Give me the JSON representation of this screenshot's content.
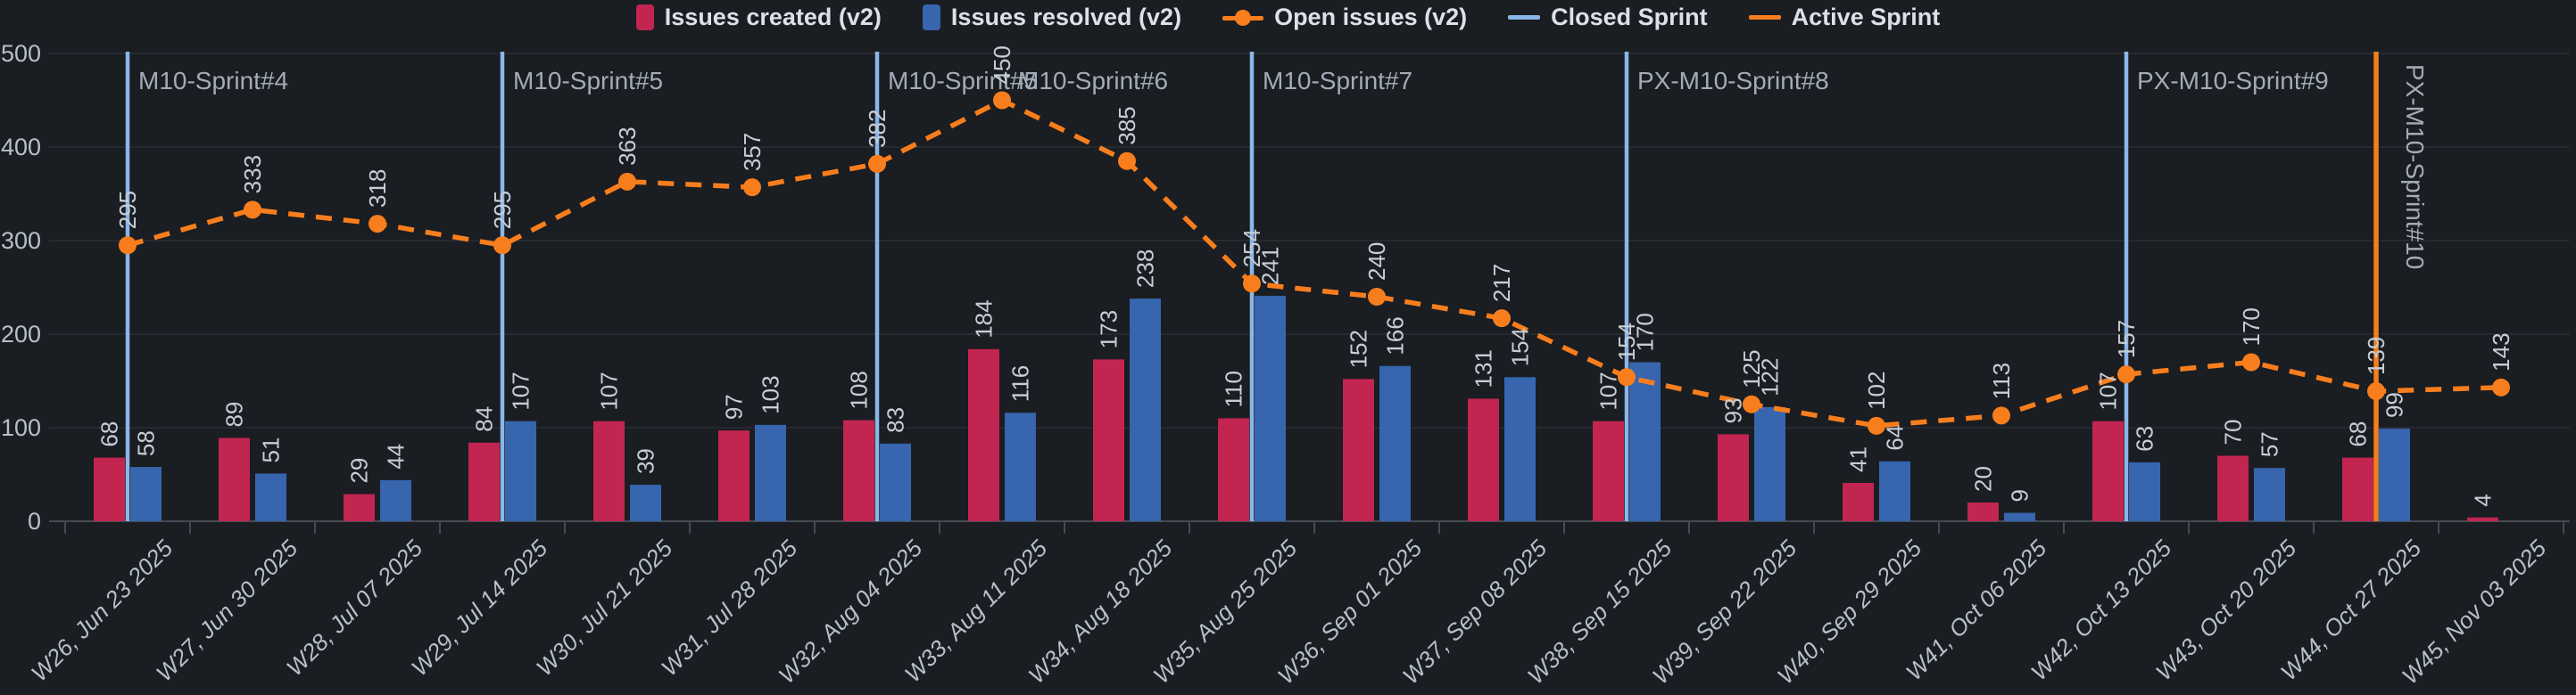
{
  "legend": {
    "items": [
      {
        "label": "Issues created (v2)",
        "marker": "square",
        "color": "#c22550"
      },
      {
        "label": "Issues resolved (v2)",
        "marker": "square",
        "color": "#3765ae"
      },
      {
        "label": "Open issues (v2)",
        "marker": "line-dot",
        "color": "#f87e1d"
      },
      {
        "label": "Closed Sprint",
        "marker": "line",
        "color": "#8ab6e8"
      },
      {
        "label": "Active Sprint",
        "marker": "line",
        "color": "#f87e1d"
      }
    ]
  },
  "chart_data": {
    "type": "bar",
    "title": "",
    "categories": [
      "W26, Jun 23 2025",
      "W27, Jun 30 2025",
      "W28, Jul 07 2025",
      "W29, Jul 14 2025",
      "W30, Jul 21 2025",
      "W31, Jul 28 2025",
      "W32, Aug 04 2025",
      "W33, Aug 11 2025",
      "W34, Aug 18 2025",
      "W35, Aug 25 2025",
      "W36, Sep 01 2025",
      "W37, Sep 08 2025",
      "W38, Sep 15 2025",
      "W39, Sep 22 2025",
      "W40, Sep 29 2025",
      "W41, Oct 06 2025",
      "W42, Oct 13 2025",
      "W43, Oct 20 2025",
      "W44, Oct 27 2025",
      "W45, Nov 03 2025"
    ],
    "series": [
      {
        "name": "Issues created (v2)",
        "type": "bar",
        "color": "#c22550",
        "values": [
          68,
          89,
          29,
          84,
          107,
          97,
          108,
          184,
          173,
          110,
          152,
          131,
          107,
          93,
          41,
          20,
          107,
          70,
          68,
          4
        ]
      },
      {
        "name": "Issues resolved (v2)",
        "type": "bar",
        "color": "#3765ae",
        "values": [
          58,
          51,
          44,
          107,
          39,
          103,
          83,
          116,
          238,
          241,
          166,
          154,
          170,
          122,
          64,
          9,
          63,
          57,
          99,
          null
        ]
      },
      {
        "name": "Open issues (v2)",
        "type": "line",
        "color": "#f87e1d",
        "dashed": true,
        "values": [
          295,
          333,
          318,
          295,
          363,
          357,
          382,
          450,
          385,
          254,
          240,
          217,
          154,
          125,
          102,
          113,
          157,
          170,
          139,
          143
        ]
      }
    ],
    "sprint_markers": [
      {
        "label": "M10-Sprint#4",
        "week": "W26, Jun 23 2025",
        "week_index": 0,
        "status": "closed",
        "label_dx": 0,
        "vertical_label": false
      },
      {
        "label": "M10-Sprint#5",
        "week": "W29, Jul 14 2025",
        "week_index": 3,
        "status": "closed",
        "label_dx": 0,
        "vertical_label": false
      },
      {
        "label": "M10-Sprint#5",
        "week": "W32, Aug 04 2025",
        "week_index": 6,
        "status": "closed",
        "label_dx": 0,
        "vertical_label": false
      },
      {
        "label": "M10-Sprint#6",
        "week": "W32, Aug 04 2025",
        "week_index": 6,
        "status": "closed",
        "label_dx": 146,
        "vertical_label": false
      },
      {
        "label": "M10-Sprint#7",
        "week": "W35, Aug 25 2025",
        "week_index": 9,
        "status": "closed",
        "label_dx": 0,
        "vertical_label": false
      },
      {
        "label": "PX-M10-Sprint#8",
        "week": "W38, Sep 15 2025",
        "week_index": 12,
        "status": "closed",
        "label_dx": 0,
        "vertical_label": false
      },
      {
        "label": "PX-M10-Sprint#9",
        "week": "W42, Oct 13 2025",
        "week_index": 16,
        "status": "closed",
        "label_dx": 0,
        "vertical_label": false
      },
      {
        "label": "PX-M10-Sprint#10",
        "week": "W44, Oct 27 2025",
        "week_index": 18,
        "status": "active",
        "label_dx": 0,
        "vertical_label": true
      }
    ],
    "ylim": [
      0,
      500
    ],
    "y_ticks": [
      0,
      100,
      200,
      300,
      400,
      500
    ],
    "grid": true,
    "legend_position": "top",
    "colors": {
      "background": "#1a1d22",
      "grid_line": "#2a2e34",
      "axis_line": "#454b53",
      "axis_text": "#b6c0cb",
      "data_label": "#c6cdd6",
      "sprint_label": "#a2acb8",
      "closed_sprint_line": "#8ab6e8",
      "active_sprint_line": "#f87e1d"
    }
  }
}
